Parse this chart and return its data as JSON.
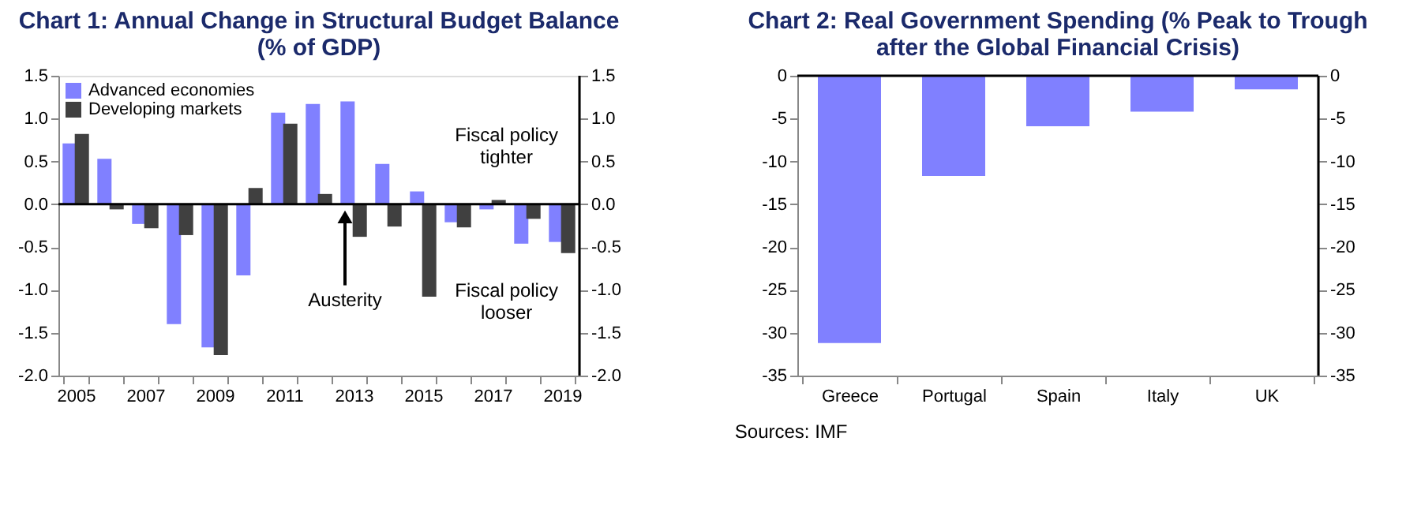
{
  "chart_data": [
    {
      "type": "bar",
      "title": "Chart 1: Annual Change in Structural Budget Balance (% of GDP)",
      "categories": [
        "2005",
        null,
        "2007",
        null,
        "2009",
        null,
        "2011",
        null,
        "2013",
        null,
        "2015",
        null,
        "2017",
        null,
        "2019"
      ],
      "series": [
        {
          "name": "Advanced economies",
          "color": "#8080ff",
          "values": [
            0.71,
            0.53,
            -0.23,
            -1.4,
            -1.67,
            -0.83,
            1.07,
            1.17,
            1.2,
            0.47,
            0.15,
            -0.21,
            -0.06,
            -0.46,
            -0.44
          ]
        },
        {
          "name": "Developing markets",
          "color": "#404040",
          "values": [
            0.82,
            -0.06,
            -0.28,
            -0.36,
            -1.76,
            0.19,
            0.94,
            0.12,
            -0.38,
            -0.26,
            -1.08,
            -0.27,
            0.05,
            -0.17,
            -0.57
          ]
        }
      ],
      "ylim": [
        -2,
        1.5
      ],
      "yticks": [
        {
          "value": -2,
          "label": "-2.0"
        },
        {
          "value": -1.5,
          "label": "-1.5"
        },
        {
          "value": -1,
          "label": "-1.0"
        },
        {
          "value": -0.5,
          "label": "-0.5"
        },
        {
          "value": 0,
          "label": "0.0"
        },
        {
          "value": 0.5,
          "label": "0.5"
        },
        {
          "value": 1,
          "label": "1.0"
        },
        {
          "value": 1.5,
          "label": "1.5"
        }
      ],
      "y2lim": [
        -2,
        1.5
      ],
      "y2ticks": [
        {
          "value": -2,
          "label": "-2.0"
        },
        {
          "value": -1.5,
          "label": "-1.5"
        },
        {
          "value": -1,
          "label": "-1.0"
        },
        {
          "value": -0.5,
          "label": "-0.5"
        },
        {
          "value": 0,
          "label": "0.0"
        },
        {
          "value": 0.5,
          "label": "0.5"
        },
        {
          "value": 1,
          "label": "1.0"
        },
        {
          "value": 1.5,
          "label": "1.5"
        }
      ],
      "annotations": [
        "Fiscal policy tighter",
        {
          "text": "Austerity",
          "y": 0
        },
        "Fiscal policy looser"
      ],
      "ref_lines": [
        {
          "axis": "y",
          "value": 0,
          "color": "#000000"
        }
      ],
      "legend": "top left",
      "grid": false
    },
    {
      "type": "bar",
      "title": "Chart 2: Real Government Spending (% Peak to Trough after the Global Financial Crisis)",
      "categories": [
        "Greece",
        "Portugal",
        "Spain",
        "Italy",
        "UK"
      ],
      "values": [
        -31.2,
        -11.7,
        -5.9,
        -4.2,
        -1.6
      ],
      "color": "#8080ff",
      "ylim": [
        -35,
        0
      ],
      "yticks": [
        -35,
        -30,
        -25,
        -20,
        -15,
        -10,
        -5,
        0
      ],
      "y2lim": [
        -35,
        0
      ],
      "y2ticks": [
        -35,
        -30,
        -25,
        -20,
        -15,
        -10,
        -5,
        0
      ],
      "ref_lines": [
        {
          "axis": "y",
          "value": 0,
          "color": "#000000"
        }
      ],
      "annotations": [
        "Sources: IMF"
      ],
      "grid": false
    }
  ]
}
